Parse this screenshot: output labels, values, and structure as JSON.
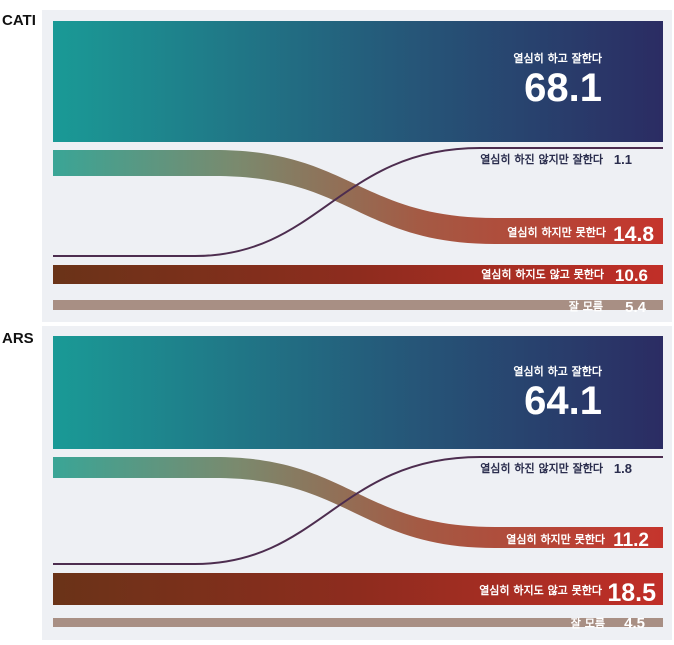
{
  "chart_data": [
    {
      "type": "sankey",
      "title": "CATI",
      "categories": [
        "열심히 하고 잘한다",
        "열심히 하진 않지만 잘한다",
        "열심히 하지만 못한다",
        "열심히 하지도 않고 못한다",
        "잘 모름"
      ],
      "values": [
        68.1,
        1.1,
        14.8,
        10.6,
        5.4
      ],
      "value_labels": [
        "68.1",
        "1.1",
        "14.8",
        "10.6",
        "5.4"
      ]
    },
    {
      "type": "sankey",
      "title": "ARS",
      "categories": [
        "열심히 하고 잘한다",
        "열심히 하진 않지만 잘한다",
        "열심히 하지만 못한다",
        "열심히 하지도 않고 못한다",
        "잘 모름"
      ],
      "values": [
        64.1,
        1.8,
        11.2,
        18.5,
        4.5
      ],
      "value_labels": [
        "64.1",
        "1.8",
        "11.2",
        "18.5",
        "4.5"
      ]
    }
  ],
  "colors": {
    "teal": "#1c9a97",
    "navy": "#2c2d63",
    "red": "#c0302a",
    "brown": "#6b3418",
    "taupe": "#a88f84",
    "purple_line": "#4d2d4f",
    "panel_bg": "#eef0f4"
  }
}
